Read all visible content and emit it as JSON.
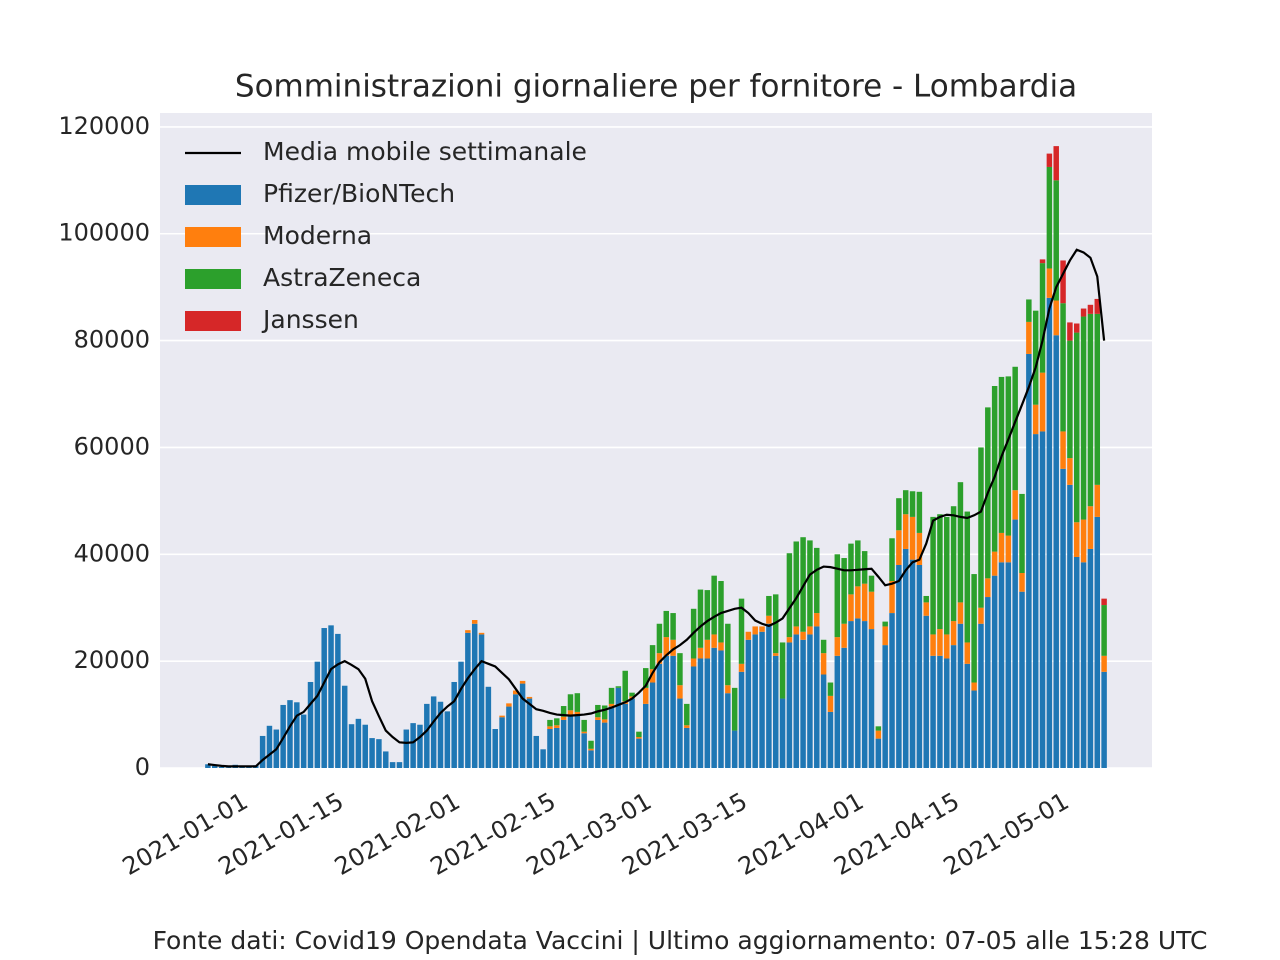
{
  "chart_data": {
    "type": "bar",
    "stacked": true,
    "title": "Somministrazioni giornaliere per fornitore - Lombardia",
    "footer": "Fonte dati: Covid19 Opendata Vaccini | Ultimo aggiornamento: 07-05 alle 15:28 UTC",
    "x": [
      "2020-12-27",
      "2020-12-28",
      "2020-12-29",
      "2020-12-30",
      "2020-12-31",
      "2021-01-01",
      "2021-01-02",
      "2021-01-03",
      "2021-01-04",
      "2021-01-05",
      "2021-01-06",
      "2021-01-07",
      "2021-01-08",
      "2021-01-09",
      "2021-01-10",
      "2021-01-11",
      "2021-01-12",
      "2021-01-13",
      "2021-01-14",
      "2021-01-15",
      "2021-01-16",
      "2021-01-17",
      "2021-01-18",
      "2021-01-19",
      "2021-01-20",
      "2021-01-21",
      "2021-01-22",
      "2021-01-23",
      "2021-01-24",
      "2021-01-25",
      "2021-01-26",
      "2021-01-27",
      "2021-01-28",
      "2021-01-29",
      "2021-01-30",
      "2021-01-31",
      "2021-02-01",
      "2021-02-02",
      "2021-02-03",
      "2021-02-04",
      "2021-02-05",
      "2021-02-06",
      "2021-02-07",
      "2021-02-08",
      "2021-02-09",
      "2021-02-10",
      "2021-02-11",
      "2021-02-12",
      "2021-02-13",
      "2021-02-14",
      "2021-02-15",
      "2021-02-16",
      "2021-02-17",
      "2021-02-18",
      "2021-02-19",
      "2021-02-20",
      "2021-02-21",
      "2021-02-22",
      "2021-02-23",
      "2021-02-24",
      "2021-02-25",
      "2021-02-26",
      "2021-02-27",
      "2021-02-28",
      "2021-03-01",
      "2021-03-02",
      "2021-03-03",
      "2021-03-04",
      "2021-03-05",
      "2021-03-06",
      "2021-03-07",
      "2021-03-08",
      "2021-03-09",
      "2021-03-10",
      "2021-03-11",
      "2021-03-12",
      "2021-03-13",
      "2021-03-14",
      "2021-03-15",
      "2021-03-16",
      "2021-03-17",
      "2021-03-18",
      "2021-03-19",
      "2021-03-20",
      "2021-03-21",
      "2021-03-22",
      "2021-03-23",
      "2021-03-24",
      "2021-03-25",
      "2021-03-26",
      "2021-03-27",
      "2021-03-28",
      "2021-03-29",
      "2021-03-30",
      "2021-03-31",
      "2021-04-01",
      "2021-04-02",
      "2021-04-03",
      "2021-04-04",
      "2021-04-05",
      "2021-04-06",
      "2021-04-07",
      "2021-04-08",
      "2021-04-09",
      "2021-04-10",
      "2021-04-11",
      "2021-04-12",
      "2021-04-13",
      "2021-04-14",
      "2021-04-15",
      "2021-04-16",
      "2021-04-17",
      "2021-04-18",
      "2021-04-19",
      "2021-04-20",
      "2021-04-21",
      "2021-04-22",
      "2021-04-23",
      "2021-04-24",
      "2021-04-25",
      "2021-04-26",
      "2021-04-27",
      "2021-04-28",
      "2021-04-29",
      "2021-04-30",
      "2021-05-01",
      "2021-05-02",
      "2021-05-03",
      "2021-05-04",
      "2021-05-05",
      "2021-05-06",
      "2021-05-07"
    ],
    "series": [
      {
        "name": "Media mobile settimanale",
        "type": "line",
        "color": "#000000",
        "values": [
          700,
          550,
          400,
          300,
          300,
          300,
          300,
          300,
          1500,
          2500,
          3500,
          5600,
          7800,
          9800,
          10500,
          12000,
          13500,
          16000,
          18500,
          19400,
          20000,
          19300,
          18500,
          16700,
          12500,
          9700,
          7000,
          5800,
          4800,
          4700,
          4800,
          5800,
          7000,
          8700,
          10300,
          11500,
          12500,
          14800,
          16800,
          18500,
          20000,
          19500,
          19000,
          17800,
          16600,
          14800,
          13000,
          12000,
          11000,
          10700,
          10300,
          10000,
          9900,
          9800,
          9900,
          10000,
          10200,
          10600,
          10900,
          11300,
          11800,
          12300,
          13000,
          14100,
          15400,
          17800,
          19800,
          21100,
          22200,
          23000,
          24000,
          25300,
          26500,
          27500,
          28300,
          29000,
          29400,
          29800,
          30000,
          29000,
          27600,
          27000,
          26600,
          27200,
          28000,
          29900,
          31800,
          34000,
          36200,
          37100,
          37700,
          37600,
          37300,
          37000,
          37000,
          37100,
          37200,
          37300,
          35800,
          34200,
          34500,
          35000,
          37000,
          38500,
          39000,
          42000,
          46300,
          47000,
          47400,
          47300,
          47000,
          46800,
          47300,
          48000,
          51500,
          54500,
          58300,
          61500,
          64800,
          68000,
          71300,
          75000,
          80000,
          86000,
          90000,
          92500,
          95000,
          97000,
          96500,
          95500,
          92000,
          80000
        ]
      },
      {
        "name": "Pfizer/BioNTech",
        "color": "#1f77b4",
        "values": [
          700,
          400,
          200,
          100,
          600,
          300,
          200,
          500,
          6000,
          7900,
          7200,
          11800,
          12700,
          12300,
          10000,
          16100,
          19900,
          26200,
          26700,
          25100,
          15400,
          8200,
          9200,
          8100,
          5600,
          5400,
          3100,
          1100,
          1100,
          7200,
          8400,
          8100,
          12000,
          13400,
          12400,
          10600,
          16100,
          19900,
          25300,
          27000,
          25000,
          15200,
          7300,
          9500,
          11500,
          13800,
          15800,
          13000,
          6000,
          3500,
          7300,
          7500,
          9000,
          10000,
          10000,
          6500,
          3300,
          9000,
          8500,
          11500,
          15000,
          12000,
          13000,
          5500,
          12000,
          16000,
          19500,
          21000,
          21000,
          13000,
          7500,
          19000,
          20500,
          20500,
          22500,
          22000,
          14000,
          7000,
          18000,
          24000,
          25000,
          25500,
          27000,
          21000,
          13000,
          23500,
          25000,
          24000,
          25000,
          26500,
          17500,
          10500,
          21000,
          22500,
          27500,
          28000,
          27500,
          26000,
          5500,
          23000,
          29000,
          38000,
          41000,
          39000,
          38000,
          28500,
          21000,
          21000,
          20500,
          23000,
          27000,
          19500,
          14500,
          27000,
          32000,
          36000,
          38500,
          38500,
          46500,
          33000,
          77500,
          62500,
          63000,
          88000,
          81000,
          56000,
          53000,
          39500,
          38500,
          41000,
          47000,
          18000
        ]
      },
      {
        "name": "Moderna",
        "color": "#ff7f0e",
        "values": [
          0,
          0,
          0,
          0,
          0,
          0,
          0,
          0,
          0,
          0,
          0,
          0,
          0,
          0,
          0,
          0,
          0,
          0,
          0,
          0,
          0,
          0,
          0,
          0,
          0,
          0,
          0,
          0,
          0,
          0,
          0,
          0,
          0,
          0,
          0,
          0,
          0,
          0,
          500,
          700,
          300,
          0,
          0,
          300,
          600,
          700,
          500,
          300,
          0,
          0,
          500,
          500,
          600,
          800,
          500,
          300,
          300,
          500,
          600,
          500,
          0,
          500,
          400,
          300,
          3000,
          2500,
          2000,
          3500,
          3000,
          2500,
          500,
          1500,
          2000,
          3500,
          2500,
          1500,
          1500,
          0,
          1500,
          1500,
          1500,
          1000,
          1500,
          500,
          0,
          1000,
          1500,
          1500,
          1500,
          2500,
          4000,
          3000,
          3500,
          4500,
          5000,
          6000,
          7000,
          7000,
          1500,
          3500,
          6000,
          6500,
          6500,
          8000,
          6000,
          2500,
          4000,
          5000,
          4500,
          4500,
          4000,
          4000,
          1500,
          3000,
          3500,
          4500,
          5500,
          5000,
          5500,
          3500,
          6000,
          5500,
          11000,
          5500,
          6500,
          7000,
          5000,
          6500,
          8000,
          8000,
          6000,
          3000
        ]
      },
      {
        "name": "AstraZeneca",
        "color": "#2ca02c",
        "values": [
          0,
          0,
          0,
          0,
          0,
          0,
          0,
          0,
          0,
          0,
          0,
          0,
          0,
          0,
          0,
          0,
          0,
          0,
          0,
          0,
          0,
          0,
          0,
          0,
          0,
          0,
          0,
          0,
          0,
          0,
          0,
          0,
          0,
          0,
          0,
          0,
          0,
          0,
          0,
          0,
          0,
          0,
          0,
          0,
          0,
          0,
          0,
          0,
          0,
          0,
          1200,
          1300,
          2000,
          3000,
          3500,
          2200,
          1500,
          2300,
          2600,
          3000,
          300,
          5700,
          700,
          1000,
          3700,
          4500,
          5500,
          4900,
          5000,
          6000,
          4000,
          9300,
          10900,
          9300,
          11000,
          11500,
          11500,
          8000,
          12200,
          0,
          0,
          0,
          3700,
          11000,
          10500,
          15700,
          15900,
          17700,
          16100,
          12200,
          2500,
          2500,
          15500,
          12300,
          9500,
          8600,
          6100,
          3000,
          800,
          900,
          8000,
          6000,
          4500,
          4800,
          7700,
          1200,
          22000,
          21500,
          22000,
          21500,
          22500,
          24500,
          20300,
          30000,
          32000,
          31000,
          29200,
          29800,
          23100,
          14800,
          4200,
          17600,
          20500,
          19000,
          22500,
          24000,
          22000,
          35500,
          38000,
          36000,
          32000,
          9500
        ]
      },
      {
        "name": "Janssen",
        "color": "#d62728",
        "values": [
          0,
          0,
          0,
          0,
          0,
          0,
          0,
          0,
          0,
          0,
          0,
          0,
          0,
          0,
          0,
          0,
          0,
          0,
          0,
          0,
          0,
          0,
          0,
          0,
          0,
          0,
          0,
          0,
          0,
          0,
          0,
          0,
          0,
          0,
          0,
          0,
          0,
          0,
          0,
          0,
          0,
          0,
          0,
          0,
          0,
          0,
          0,
          0,
          0,
          0,
          0,
          0,
          0,
          0,
          0,
          0,
          0,
          0,
          0,
          0,
          0,
          0,
          0,
          0,
          0,
          0,
          0,
          0,
          0,
          0,
          0,
          0,
          0,
          0,
          0,
          0,
          0,
          0,
          0,
          0,
          0,
          0,
          0,
          0,
          0,
          0,
          0,
          0,
          0,
          0,
          0,
          0,
          0,
          0,
          0,
          0,
          0,
          0,
          0,
          0,
          0,
          0,
          0,
          0,
          0,
          0,
          0,
          0,
          0,
          0,
          0,
          0,
          0,
          0,
          0,
          0,
          0,
          0,
          0,
          0,
          0,
          0,
          700,
          2500,
          6400,
          8000,
          3400,
          1700,
          1500,
          1700,
          2800,
          1200
        ]
      }
    ],
    "xlim": [
      "2020-12-20",
      "2021-05-14"
    ],
    "xticks": [
      "2021-01-01",
      "2021-01-15",
      "2021-02-01",
      "2021-02-15",
      "2021-03-01",
      "2021-03-15",
      "2021-04-01",
      "2021-04-15",
      "2021-05-01"
    ],
    "ylim": [
      0,
      122600
    ],
    "yticks": [
      0,
      20000,
      40000,
      60000,
      80000,
      100000,
      120000
    ],
    "grid": true,
    "legend": "upper left"
  }
}
